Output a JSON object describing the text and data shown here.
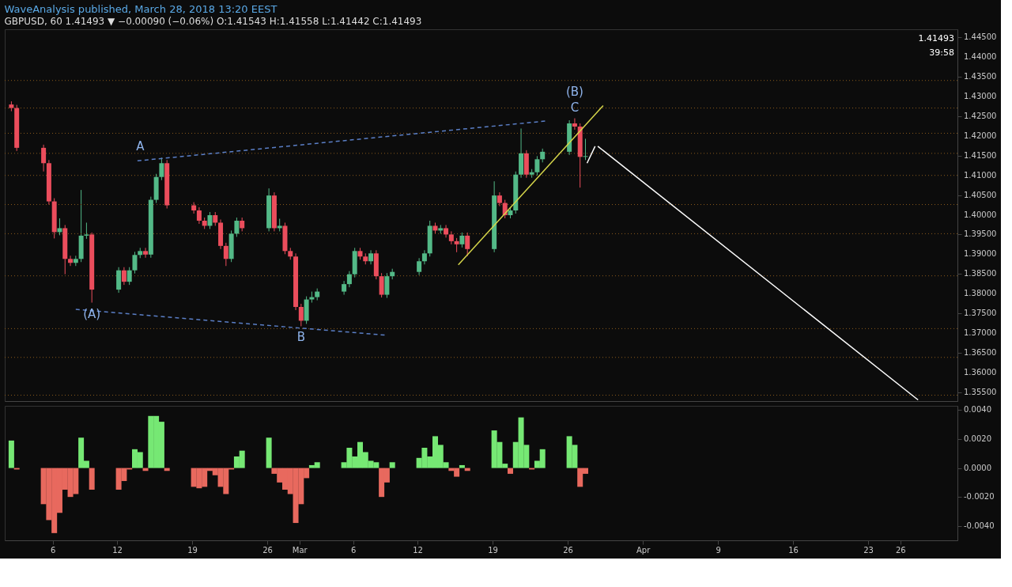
{
  "chart_data": [
    {
      "type": "candlestick",
      "title": "WaveAnalysis published, March 28, 2018 13:20 EEST",
      "subtitle": "GBPUSD, 60  1.41493 ▼ −0.00090 (−0.06%) O:1.41543 H:1.41558 L:1.41442 C:1.41493",
      "x": [
        "2018-02-02T03:36",
        "2018-02-02T15:36",
        "2018-02-05T03:36",
        "2018-02-05T15:36",
        "2018-02-06T03:36",
        "2018-02-06T15:36",
        "2018-02-07T03:36",
        "2018-02-07T15:36",
        "2018-02-08T03:36",
        "2018-02-08T15:36",
        "2018-02-09T03:36",
        "2018-02-09T15:36",
        "2018-02-12T03:36",
        "2018-02-12T15:36",
        "2018-02-13T03:36",
        "2018-02-13T15:36",
        "2018-02-14T03:36",
        "2018-02-14T15:36",
        "2018-02-15T03:36",
        "2018-02-15T15:36",
        "2018-02-16T03:36",
        "2018-02-16T15:36",
        "2018-02-19T03:36",
        "2018-02-19T15:36",
        "2018-02-20T03:36",
        "2018-02-20T15:36",
        "2018-02-21T03:36",
        "2018-02-21T15:36",
        "2018-02-22T03:36",
        "2018-02-22T15:36",
        "2018-02-23T03:36",
        "2018-02-23T15:36",
        "2018-02-26T03:36",
        "2018-02-26T15:36",
        "2018-02-27T03:36",
        "2018-02-27T15:36",
        "2018-02-28T03:36",
        "2018-02-28T15:36",
        "2018-03-01T03:36",
        "2018-03-01T15:36",
        "2018-03-02T03:36",
        "2018-03-02T15:36",
        "2018-03-05T03:36",
        "2018-03-05T15:36",
        "2018-03-06T03:36",
        "2018-03-06T15:36",
        "2018-03-07T03:36",
        "2018-03-07T15:36",
        "2018-03-08T03:36",
        "2018-03-08T15:36",
        "2018-03-09T03:36",
        "2018-03-09T15:36",
        "2018-03-12T03:36",
        "2018-03-12T15:36",
        "2018-03-13T03:36",
        "2018-03-13T15:36",
        "2018-03-14T03:36",
        "2018-03-14T15:36",
        "2018-03-15T03:36",
        "2018-03-15T15:36",
        "2018-03-16T03:36",
        "2018-03-16T15:36",
        "2018-03-19T03:36",
        "2018-03-19T15:36",
        "2018-03-20T03:36",
        "2018-03-20T15:36",
        "2018-03-21T03:36",
        "2018-03-21T15:36",
        "2018-03-22T03:36",
        "2018-03-22T15:36",
        "2018-03-23T03:36",
        "2018-03-23T15:36",
        "2018-03-26T03:36",
        "2018-03-26T15:36",
        "2018-03-27T03:36",
        "2018-03-27T15:36"
      ],
      "ohlc": [
        [
          1.428,
          1.4288,
          1.4263,
          1.4271
        ],
        [
          1.4271,
          1.4279,
          1.4162,
          1.417
        ],
        [
          1.417,
          1.4178,
          1.411,
          1.4131
        ],
        [
          1.4131,
          1.4139,
          1.4026,
          1.4034
        ],
        [
          1.4034,
          1.4042,
          1.394,
          1.3956
        ],
        [
          1.3956,
          1.3991,
          1.3948,
          1.3966
        ],
        [
          1.3966,
          1.3974,
          1.3849,
          1.3888
        ],
        [
          1.3888,
          1.3896,
          1.387,
          1.3878
        ],
        [
          1.3878,
          1.3896,
          1.387,
          1.3888
        ],
        [
          1.3888,
          1.4063,
          1.388,
          1.3947
        ],
        [
          1.3947,
          1.398,
          1.3939,
          1.395
        ],
        [
          1.395,
          1.3955,
          1.3777,
          1.381
        ],
        [
          1.381,
          1.3867,
          1.3802,
          1.3859
        ],
        [
          1.3859,
          1.3867,
          1.3822,
          1.383
        ],
        [
          1.383,
          1.3867,
          1.3822,
          1.3859
        ],
        [
          1.3859,
          1.3906,
          1.3851,
          1.3898
        ],
        [
          1.3898,
          1.3916,
          1.389,
          1.3908
        ],
        [
          1.3908,
          1.3916,
          1.3891,
          1.3899
        ],
        [
          1.3899,
          1.4046,
          1.3891,
          1.4038
        ],
        [
          1.4038,
          1.4104,
          1.403,
          1.4096
        ],
        [
          1.4096,
          1.4145,
          1.4088,
          1.4131
        ],
        [
          1.4131,
          1.4139,
          1.4016,
          1.4024
        ],
        [
          1.4024,
          1.4032,
          1.4003,
          1.4011
        ],
        [
          1.4011,
          1.4019,
          1.3977,
          1.3985
        ],
        [
          1.3985,
          1.3993,
          1.3964,
          1.3972
        ],
        [
          1.3972,
          1.4007,
          1.3964,
          1.3999
        ],
        [
          1.3999,
          1.4007,
          1.3972,
          1.398
        ],
        [
          1.398,
          1.3988,
          1.3913,
          1.3921
        ],
        [
          1.3921,
          1.3929,
          1.387,
          1.3888
        ],
        [
          1.3888,
          1.396,
          1.388,
          1.3952
        ],
        [
          1.3952,
          1.3993,
          1.3944,
          1.3985
        ],
        [
          1.3985,
          1.3993,
          1.3958,
          1.3966
        ],
        [
          1.3966,
          1.4067,
          1.3958,
          1.4049
        ],
        [
          1.4049,
          1.4057,
          1.3958,
          1.3966
        ],
        [
          1.3966,
          1.399,
          1.3958,
          1.3972
        ],
        [
          1.3972,
          1.398,
          1.39,
          1.3908
        ],
        [
          1.3908,
          1.3916,
          1.3886,
          1.3894
        ],
        [
          1.3894,
          1.3902,
          1.3758,
          1.3766
        ],
        [
          1.3766,
          1.3774,
          1.3717,
          1.3731
        ],
        [
          1.3731,
          1.3793,
          1.3723,
          1.3785
        ],
        [
          1.3785,
          1.3805,
          1.3777,
          1.3791
        ],
        [
          1.3791,
          1.3813,
          1.3783,
          1.3805
        ],
        [
          1.3805,
          1.3832,
          1.3797,
          1.3824
        ],
        [
          1.3824,
          1.3857,
          1.3816,
          1.3849
        ],
        [
          1.3849,
          1.3916,
          1.3841,
          1.3908
        ],
        [
          1.3908,
          1.3916,
          1.3886,
          1.3894
        ],
        [
          1.3894,
          1.3902,
          1.3874,
          1.3882
        ],
        [
          1.3882,
          1.391,
          1.3874,
          1.3902
        ],
        [
          1.3902,
          1.391,
          1.3836,
          1.3844
        ],
        [
          1.3844,
          1.3852,
          1.379,
          1.3797
        ],
        [
          1.3797,
          1.3852,
          1.3789,
          1.3844
        ],
        [
          1.3844,
          1.3863,
          1.3836,
          1.3855
        ],
        [
          1.3855,
          1.389,
          1.3847,
          1.3882
        ],
        [
          1.3882,
          1.391,
          1.3874,
          1.3902
        ],
        [
          1.3902,
          1.3985,
          1.3894,
          1.3972
        ],
        [
          1.3972,
          1.398,
          1.3952,
          1.396
        ],
        [
          1.396,
          1.3974,
          1.3952,
          1.3966
        ],
        [
          1.3966,
          1.3974,
          1.3942,
          1.395
        ],
        [
          1.395,
          1.3958,
          1.3925,
          1.3933
        ],
        [
          1.3933,
          1.3941,
          1.3905,
          1.3925
        ],
        [
          1.3925,
          1.3955,
          1.3917,
          1.3947
        ],
        [
          1.3947,
          1.3955,
          1.3895,
          1.3913
        ],
        [
          1.3913,
          1.4085,
          1.3905,
          1.4049
        ],
        [
          1.4049,
          1.4057,
          1.4022,
          1.403
        ],
        [
          1.403,
          1.4038,
          1.3991,
          1.3999
        ],
        [
          1.3999,
          1.4019,
          1.3991,
          1.4011
        ],
        [
          1.4011,
          1.411,
          1.4003,
          1.4102
        ],
        [
          1.4102,
          1.4219,
          1.4094,
          1.4156
        ],
        [
          1.4156,
          1.4164,
          1.4094,
          1.4102
        ],
        [
          1.4102,
          1.4116,
          1.4094,
          1.4108
        ],
        [
          1.4108,
          1.4149,
          1.41,
          1.4141
        ],
        [
          1.4141,
          1.4168,
          1.4133,
          1.416
        ],
        [
          1.416,
          1.424,
          1.4152,
          1.4232
        ],
        [
          1.4232,
          1.4245,
          1.4216,
          1.4224
        ],
        [
          1.4224,
          1.4232,
          1.4069,
          1.4147
        ],
        [
          1.4147,
          1.4193,
          1.4139,
          1.4149
        ]
      ],
      "colors": [
        "#eb4d5c",
        "#eb4d5c",
        "#eb4d5c",
        "#eb4d5c",
        "#eb4d5c",
        "#53b987",
        "#eb4d5c",
        "#eb4d5c",
        "#53b987",
        "#53b987",
        "#53b987",
        "#eb4d5c",
        "#53b987",
        "#eb4d5c",
        "#53b987",
        "#53b987",
        "#53b987",
        "#eb4d5c",
        "#53b987",
        "#53b987",
        "#53b987",
        "#eb4d5c",
        "#eb4d5c",
        "#eb4d5c",
        "#eb4d5c",
        "#53b987",
        "#eb4d5c",
        "#eb4d5c",
        "#eb4d5c",
        "#53b987",
        "#53b987",
        "#eb4d5c",
        "#53b987",
        "#eb4d5c",
        "#53b987",
        "#eb4d5c",
        "#eb4d5c",
        "#eb4d5c",
        "#eb4d5c",
        "#53b987",
        "#53b987",
        "#53b987",
        "#53b987",
        "#53b987",
        "#53b987",
        "#eb4d5c",
        "#eb4d5c",
        "#53b987",
        "#eb4d5c",
        "#eb4d5c",
        "#53b987",
        "#53b987",
        "#53b987",
        "#53b987",
        "#53b987",
        "#eb4d5c",
        "#53b987",
        "#eb4d5c",
        "#eb4d5c",
        "#eb4d5c",
        "#53b987",
        "#eb4d5c",
        "#53b987",
        "#eb4d5c",
        "#eb4d5c",
        "#53b987",
        "#53b987",
        "#53b987",
        "#eb4d5c",
        "#53b987",
        "#53b987",
        "#53b987",
        "#53b987",
        "#eb4d5c",
        "#eb4d5c",
        "#53b987"
      ],
      "series": [
        {
          "type": "line",
          "x": [
            "2018-02-13T21:36",
            "2018-03-23T21:36"
          ],
          "values": [
            1.4137,
            1.4238
          ],
          "color": "#5b7fc7",
          "line_style": "dashed"
        },
        {
          "type": "line",
          "x": [
            "2018-02-08T03:36",
            "2018-03-09T03:36"
          ],
          "values": [
            1.376,
            1.3694
          ],
          "color": "#5b7fc7",
          "line_style": "dashed"
        },
        {
          "type": "line",
          "x": [
            "2018-03-15T19:12",
            "2018-03-29T07:12"
          ],
          "values": [
            1.3873,
            1.4277
          ],
          "color": "#d6d64a",
          "line_style": "solid"
        },
        {
          "type": "line",
          "x": [
            "2018-03-28T19:12",
            "2018-04-27T15:36"
          ],
          "values": [
            1.4174,
            1.353
          ],
          "color": "#ffffff",
          "line_style": "solid"
        },
        {
          "type": "line",
          "x": [
            "2018-03-27T19:12",
            "2018-03-28T13:12"
          ],
          "values": [
            1.4131,
            1.4174
          ],
          "color": "#ffffff",
          "line_style": "solid"
        }
      ],
      "ref_lines": [
        {
          "axis": "y",
          "value": 1.4341,
          "color": "#8a5a1c",
          "line_style": "dotted"
        },
        {
          "axis": "y",
          "value": 1.4271,
          "color": "#8a5a1c",
          "line_style": "dotted"
        },
        {
          "axis": "y",
          "value": 1.4207,
          "color": "#8a5a1c",
          "line_style": "dotted"
        },
        {
          "axis": "y",
          "value": 1.4156,
          "color": "#8a5a1c",
          "line_style": "dotted"
        },
        {
          "axis": "y",
          "value": 1.41,
          "color": "#8a5a1c",
          "line_style": "dotted"
        },
        {
          "axis": "y",
          "value": 1.4026,
          "color": "#8a5a1c",
          "line_style": "dotted"
        },
        {
          "axis": "y",
          "value": 1.3952,
          "color": "#8a5a1c",
          "line_style": "dotted"
        },
        {
          "axis": "y",
          "value": 1.3845,
          "color": "#8a5a1c",
          "line_style": "dotted"
        },
        {
          "axis": "y",
          "value": 1.3711,
          "color": "#8a5a1c",
          "line_style": "dotted"
        },
        {
          "axis": "y",
          "value": 1.3638,
          "color": "#8a5a1c",
          "line_style": "dotted"
        },
        {
          "axis": "y",
          "value": 1.3542,
          "color": "#8a5a1c",
          "line_style": "dotted"
        }
      ],
      "annotations": [
        {
          "text": "(A)",
          "x": "2018-02-09T15:36",
          "y": 1.3777
        },
        {
          "text": "A",
          "x": "2018-02-14T03:36",
          "y": 1.4145
        },
        {
          "text": "B",
          "x": "2018-03-01T03:36",
          "y": 1.3717
        },
        {
          "text": "C",
          "x": "2018-03-26T15:36",
          "y": 1.4245
        },
        {
          "text": "(B)",
          "x": "2018-03-26T15:36",
          "y": 1.4245
        },
        "1.41493",
        "39:58"
      ],
      "xlim": [
        "2018-02-01T21:36",
        "2018-04-30T22:48"
      ],
      "ylim": [
        1.3527,
        1.4471
      ],
      "yticks": [
        {
          "value": 1.355,
          "label": "1.35500"
        },
        {
          "value": 1.36,
          "label": "1.36000"
        },
        {
          "value": 1.365,
          "label": "1.36500"
        },
        {
          "value": 1.37,
          "label": "1.37000"
        },
        {
          "value": 1.375,
          "label": "1.37500"
        },
        {
          "value": 1.38,
          "label": "1.38000"
        },
        {
          "value": 1.385,
          "label": "1.38500"
        },
        {
          "value": 1.39,
          "label": "1.39000"
        },
        {
          "value": 1.395,
          "label": "1.39500"
        },
        {
          "value": 1.4,
          "label": "1.40000"
        },
        {
          "value": 1.405,
          "label": "1.40500"
        },
        {
          "value": 1.41,
          "label": "1.41000"
        },
        {
          "value": 1.415,
          "label": "1.41500"
        },
        {
          "value": 1.42,
          "label": "1.42000"
        },
        {
          "value": 1.425,
          "label": "1.42500"
        },
        {
          "value": 1.43,
          "label": "1.43000"
        },
        {
          "value": 1.435,
          "label": "1.43500"
        },
        {
          "value": 1.44,
          "label": "1.44000"
        },
        {
          "value": 1.445,
          "label": "1.44500"
        }
      ],
      "tick_labels": "y"
    },
    {
      "type": "bar",
      "x": [
        "2018-02-02T03:36",
        "2018-02-02T15:36",
        "2018-02-05T03:36",
        "2018-02-05T15:36",
        "2018-02-06T03:36",
        "2018-02-06T15:36",
        "2018-02-07T03:36",
        "2018-02-07T15:36",
        "2018-02-08T03:36",
        "2018-02-08T15:36",
        "2018-02-09T03:36",
        "2018-02-09T15:36",
        "2018-02-12T03:36",
        "2018-02-12T15:36",
        "2018-02-13T03:36",
        "2018-02-13T15:36",
        "2018-02-14T03:36",
        "2018-02-14T15:36",
        "2018-02-15T03:36",
        "2018-02-15T15:36",
        "2018-02-16T03:36",
        "2018-02-16T15:36",
        "2018-02-19T03:36",
        "2018-02-19T15:36",
        "2018-02-20T03:36",
        "2018-02-20T15:36",
        "2018-02-21T03:36",
        "2018-02-21T15:36",
        "2018-02-22T03:36",
        "2018-02-22T15:36",
        "2018-02-23T03:36",
        "2018-02-23T15:36",
        "2018-02-26T03:36",
        "2018-02-26T15:36",
        "2018-02-27T03:36",
        "2018-02-27T15:36",
        "2018-02-28T03:36",
        "2018-02-28T15:36",
        "2018-03-01T03:36",
        "2018-03-01T15:36",
        "2018-03-02T03:36",
        "2018-03-02T15:36",
        "2018-03-05T03:36",
        "2018-03-05T15:36",
        "2018-03-06T03:36",
        "2018-03-06T15:36",
        "2018-03-07T03:36",
        "2018-03-07T15:36",
        "2018-03-08T03:36",
        "2018-03-08T15:36",
        "2018-03-09T03:36",
        "2018-03-09T15:36",
        "2018-03-12T03:36",
        "2018-03-12T15:36",
        "2018-03-13T03:36",
        "2018-03-13T15:36",
        "2018-03-14T03:36",
        "2018-03-14T15:36",
        "2018-03-15T03:36",
        "2018-03-15T15:36",
        "2018-03-16T03:36",
        "2018-03-16T15:36",
        "2018-03-19T03:36",
        "2018-03-19T15:36",
        "2018-03-20T03:36",
        "2018-03-20T15:36",
        "2018-03-21T03:36",
        "2018-03-21T15:36",
        "2018-03-22T03:36",
        "2018-03-22T15:36",
        "2018-03-23T03:36",
        "2018-03-23T15:36",
        "2018-03-26T03:36",
        "2018-03-26T15:36",
        "2018-03-27T03:36",
        "2018-03-27T15:36"
      ],
      "values": [
        0.0019,
        -0.0001,
        -0.0025,
        -0.0036,
        -0.0045,
        -0.0031,
        -0.0015,
        -0.002,
        -0.0018,
        0.0021,
        0.0005,
        -0.0015,
        -0.0015,
        -0.0009,
        -0.0001,
        0.0013,
        0.0011,
        -0.0002,
        0.0036,
        0.0036,
        0.0032,
        -0.0002,
        -0.0013,
        -0.0014,
        -0.0013,
        -0.0002,
        -0.0005,
        -0.0013,
        -0.0018,
        -0.0001,
        0.0008,
        0.0012,
        0.0021,
        -0.0004,
        -0.001,
        -0.0015,
        -0.0018,
        -0.0038,
        -0.0025,
        -0.0007,
        0.0002,
        0.0004,
        0.0004,
        0.0014,
        0.0008,
        0.0018,
        0.0011,
        0.0005,
        0.0004,
        -0.002,
        -0.001,
        0.0004,
        0.0007,
        0.0014,
        0.0008,
        0.0022,
        0.0016,
        0.0004,
        -0.0002,
        -0.0006,
        0.0002,
        -0.0002,
        0.0026,
        0.0018,
        0.0003,
        -0.0004,
        0.0018,
        0.0035,
        0.0016,
        -0.0001,
        0.0005,
        0.0013,
        0.0022,
        0.0016,
        -0.0013,
        -0.0004
      ],
      "colors": [
        "#76e874",
        "#e8695e",
        "#e8695e",
        "#e8695e",
        "#e8695e",
        "#e8695e",
        "#e8695e",
        "#e8695e",
        "#e8695e",
        "#76e874",
        "#76e874",
        "#e8695e",
        "#e8695e",
        "#e8695e",
        "#e8695e",
        "#76e874",
        "#76e874",
        "#e8695e",
        "#76e874",
        "#76e874",
        "#76e874",
        "#e8695e",
        "#e8695e",
        "#e8695e",
        "#e8695e",
        "#e8695e",
        "#e8695e",
        "#e8695e",
        "#e8695e",
        "#e8695e",
        "#76e874",
        "#76e874",
        "#76e874",
        "#e8695e",
        "#e8695e",
        "#e8695e",
        "#e8695e",
        "#e8695e",
        "#e8695e",
        "#e8695e",
        "#76e874",
        "#76e874",
        "#76e874",
        "#76e874",
        "#76e874",
        "#76e874",
        "#76e874",
        "#76e874",
        "#76e874",
        "#e8695e",
        "#e8695e",
        "#76e874",
        "#76e874",
        "#76e874",
        "#76e874",
        "#76e874",
        "#76e874",
        "#76e874",
        "#e8695e",
        "#e8695e",
        "#76e874",
        "#e8695e",
        "#76e874",
        "#76e874",
        "#76e874",
        "#e8695e",
        "#76e874",
        "#76e874",
        "#76e874",
        "#e8695e",
        "#76e874",
        "#76e874",
        "#76e874",
        "#76e874",
        "#e8695e",
        "#e8695e"
      ],
      "xlim": [
        "2018-02-01T21:36",
        "2018-04-30T22:48"
      ],
      "ylim": [
        -0.005,
        0.0043
      ],
      "xticks": [
        {
          "value": "2018-02-06",
          "label": "6"
        },
        {
          "value": "2018-02-12",
          "label": "12"
        },
        {
          "value": "2018-02-19",
          "label": "19"
        },
        {
          "value": "2018-02-26",
          "label": "26"
        },
        {
          "value": "2018-03-01",
          "label": "Mar"
        },
        {
          "value": "2018-03-06",
          "label": "6"
        },
        {
          "value": "2018-03-12",
          "label": "12"
        },
        {
          "value": "2018-03-19",
          "label": "19"
        },
        {
          "value": "2018-03-26",
          "label": "26"
        },
        {
          "value": "2018-04-02",
          "label": "Apr"
        },
        {
          "value": "2018-04-09",
          "label": "9"
        },
        {
          "value": "2018-04-16",
          "label": "16"
        },
        {
          "value": "2018-04-23",
          "label": "23"
        },
        {
          "value": "2018-04-26",
          "label": "26"
        }
      ],
      "yticks": [
        {
          "value": 0.004,
          "label": "0.0040"
        },
        {
          "value": 0.002,
          "label": "0.0020"
        },
        {
          "value": 0,
          "label": "0.0000"
        },
        {
          "value": -0.002,
          "label": "-0.0020"
        },
        {
          "value": -0.004,
          "label": "-0.0040"
        }
      ]
    }
  ]
}
